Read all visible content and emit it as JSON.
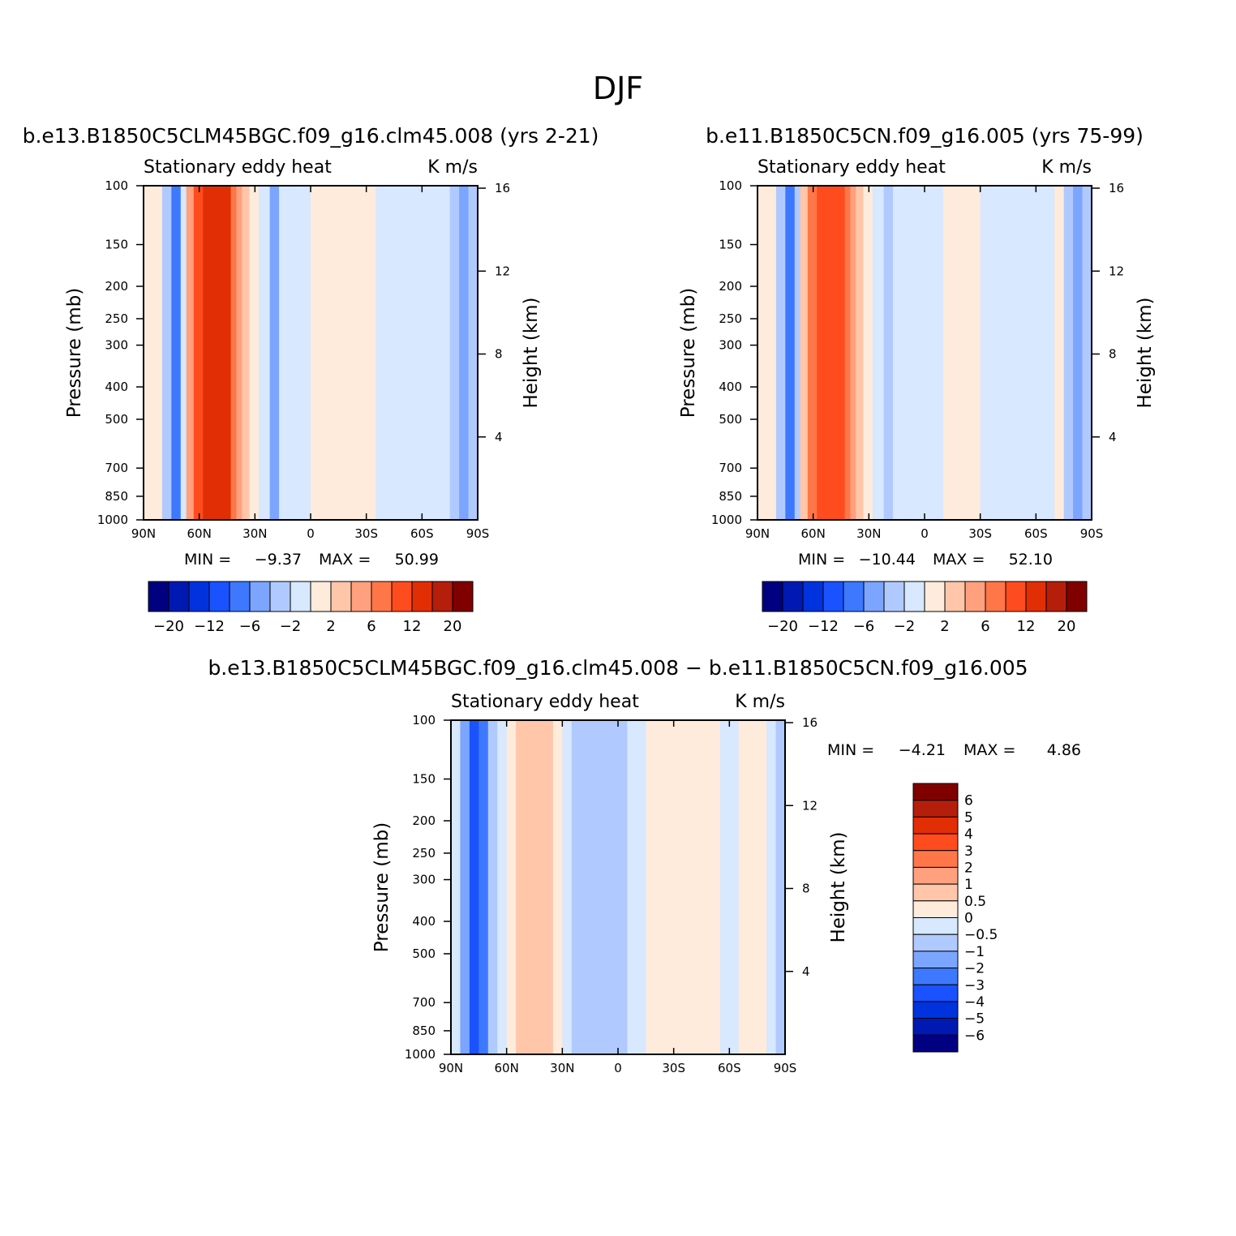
{
  "figure": {
    "title": "DJF"
  },
  "palette": {
    "left_fill": "#e8a6a8",
    "colors_main": [
      "#000080",
      "#0019b2",
      "#0033dd",
      "#1a52ff",
      "#3d78ff",
      "#7ba5ff",
      "#b0caff",
      "#d7e8ff",
      "#ffebdb",
      "#ffc6a9",
      "#ffa07e",
      "#ff7748",
      "#ff4c1f",
      "#e22e05",
      "#b51e0a",
      "#800000"
    ],
    "colors_diff": [
      "#000080",
      "#0019b2",
      "#0033dd",
      "#1a52ff",
      "#3d78ff",
      "#7ba5ff",
      "#b0caff",
      "#d7e8ff",
      "#ffebdb",
      "#ffc6a9",
      "#ffa07e",
      "#ff7748",
      "#ff4c1f",
      "#e22e05",
      "#b51e0a",
      "#800000"
    ]
  },
  "chart_data": [
    {
      "type": "heatmap",
      "id": "panel1",
      "header": "b.e13.B1850C5CLM45BGC.f09_g16.clm45.008 (yrs 2-21)",
      "subtitle": "Stationary eddy heat",
      "units": "K m/s",
      "ylabel": "Pressure (mb)",
      "y2label": "Height (km)",
      "x_ticks": [
        "90N",
        "60N",
        "30N",
        "0",
        "30S",
        "60S",
        "90S"
      ],
      "y_ticks": [
        "100",
        "150",
        "200",
        "250",
        "300",
        "400",
        "500",
        "700",
        "850",
        "1000"
      ],
      "y2_ticks": [
        "16",
        "12",
        "8",
        "4"
      ],
      "min_label": "MIN =",
      "min_value": "−9.37",
      "max_label": "MAX =",
      "max_value": "50.99",
      "colorbar_labels": [
        "−20",
        "−12",
        "−6",
        "−2",
        "2",
        "6",
        "12",
        "20"
      ],
      "levels": [
        -20,
        -16,
        -12,
        -9,
        -6,
        -4,
        -2,
        0,
        2,
        4,
        6,
        9,
        12,
        16,
        20
      ],
      "bands": [
        {
          "lat": 90,
          "level": 1
        },
        {
          "lat": 85,
          "level": 1
        },
        {
          "lat": 80,
          "level": -1
        },
        {
          "lat": 75,
          "level": -3
        },
        {
          "lat": 70,
          "level": 0
        },
        {
          "lat": 67,
          "level": 3
        },
        {
          "lat": 63,
          "level": 5
        },
        {
          "lat": 58,
          "level": 6
        },
        {
          "lat": 52,
          "level": 6
        },
        {
          "lat": 47,
          "level": 6
        },
        {
          "lat": 43,
          "level": 4
        },
        {
          "lat": 40,
          "level": 3
        },
        {
          "lat": 37,
          "level": 2
        },
        {
          "lat": 33,
          "level": 1
        },
        {
          "lat": 28,
          "level": 0
        },
        {
          "lat": 22,
          "level": -2
        },
        {
          "lat": 17,
          "level": 0
        },
        {
          "lat": 10,
          "level": 0
        },
        {
          "lat": 5,
          "level": 0
        },
        {
          "lat": 0,
          "level": 1
        },
        {
          "lat": -5,
          "level": 1
        },
        {
          "lat": -10,
          "level": 1
        },
        {
          "lat": -15,
          "level": 1
        },
        {
          "lat": -20,
          "level": 1
        },
        {
          "lat": -25,
          "level": 1
        },
        {
          "lat": -30,
          "level": 1
        },
        {
          "lat": -35,
          "level": 0
        },
        {
          "lat": -40,
          "level": 0
        },
        {
          "lat": -45,
          "level": 0
        },
        {
          "lat": -50,
          "level": 0
        },
        {
          "lat": -55,
          "level": 0
        },
        {
          "lat": -60,
          "level": 0
        },
        {
          "lat": -65,
          "level": 0
        },
        {
          "lat": -70,
          "level": 0
        },
        {
          "lat": -75,
          "level": -1
        },
        {
          "lat": -80,
          "level": -2
        },
        {
          "lat": -85,
          "level": -1
        },
        {
          "lat": -90,
          "level": 0
        }
      ]
    },
    {
      "type": "heatmap",
      "id": "panel2",
      "header": "b.e11.B1850C5CN.f09_g16.005 (yrs 75-99)",
      "subtitle": "Stationary eddy heat",
      "units": "K m/s",
      "ylabel": "Pressure (mb)",
      "y2label": "Height (km)",
      "x_ticks": [
        "90N",
        "60N",
        "30N",
        "0",
        "30S",
        "60S",
        "90S"
      ],
      "y_ticks": [
        "100",
        "150",
        "200",
        "250",
        "300",
        "400",
        "500",
        "700",
        "850",
        "1000"
      ],
      "y2_ticks": [
        "16",
        "12",
        "8",
        "4"
      ],
      "min_label": "MIN =",
      "min_value": "−10.44",
      "max_label": "MAX =",
      "max_value": "52.10",
      "colorbar_labels": [
        "−20",
        "−12",
        "−6",
        "−2",
        "2",
        "6",
        "12",
        "20"
      ],
      "levels": [
        -20,
        -16,
        -12,
        -9,
        -6,
        -4,
        -2,
        0,
        2,
        4,
        6,
        9,
        12,
        16,
        20
      ],
      "bands": [
        {
          "lat": 90,
          "level": 1
        },
        {
          "lat": 85,
          "level": 1
        },
        {
          "lat": 80,
          "level": -1
        },
        {
          "lat": 75,
          "level": -3
        },
        {
          "lat": 70,
          "level": -1
        },
        {
          "lat": 67,
          "level": 2
        },
        {
          "lat": 63,
          "level": 4
        },
        {
          "lat": 58,
          "level": 5
        },
        {
          "lat": 52,
          "level": 5
        },
        {
          "lat": 47,
          "level": 5
        },
        {
          "lat": 43,
          "level": 4
        },
        {
          "lat": 40,
          "level": 3
        },
        {
          "lat": 37,
          "level": 2
        },
        {
          "lat": 33,
          "level": 1
        },
        {
          "lat": 28,
          "level": 0
        },
        {
          "lat": 22,
          "level": -1
        },
        {
          "lat": 17,
          "level": 0
        },
        {
          "lat": 10,
          "level": 0
        },
        {
          "lat": 5,
          "level": 0
        },
        {
          "lat": 0,
          "level": 0
        },
        {
          "lat": -5,
          "level": 0
        },
        {
          "lat": -10,
          "level": 1
        },
        {
          "lat": -15,
          "level": 1
        },
        {
          "lat": -20,
          "level": 1
        },
        {
          "lat": -25,
          "level": 1
        },
        {
          "lat": -30,
          "level": 0
        },
        {
          "lat": -35,
          "level": 0
        },
        {
          "lat": -40,
          "level": 0
        },
        {
          "lat": -45,
          "level": 0
        },
        {
          "lat": -50,
          "level": 0
        },
        {
          "lat": -55,
          "level": 0
        },
        {
          "lat": -60,
          "level": 0
        },
        {
          "lat": -65,
          "level": 0
        },
        {
          "lat": -70,
          "level": 1
        },
        {
          "lat": -75,
          "level": -1
        },
        {
          "lat": -80,
          "level": -2
        },
        {
          "lat": -85,
          "level": -1
        },
        {
          "lat": -90,
          "level": 0
        }
      ]
    },
    {
      "type": "heatmap",
      "id": "panel3",
      "header": "b.e13.B1850C5CLM45BGC.f09_g16.clm45.008 − b.e11.B1850C5CN.f09_g16.005",
      "subtitle": "Stationary eddy heat",
      "units": "K m/s",
      "ylabel": "Pressure (mb)",
      "y2label": "Height (km)",
      "x_ticks": [
        "90N",
        "60N",
        "30N",
        "0",
        "30S",
        "60S",
        "90S"
      ],
      "y_ticks": [
        "100",
        "150",
        "200",
        "250",
        "300",
        "400",
        "500",
        "700",
        "850",
        "1000"
      ],
      "y2_ticks": [
        "16",
        "12",
        "8",
        "4"
      ],
      "min_label": "MIN =",
      "min_value": "−4.21",
      "max_label": "MAX =",
      "max_value": "4.86",
      "colorbar_labels": [
        "6",
        "5",
        "4",
        "3",
        "2",
        "1",
        "0.5",
        "0",
        "−0.5",
        "−1",
        "−2",
        "−3",
        "−4",
        "−5",
        "−6"
      ],
      "levels": [
        -6,
        -5,
        -4,
        -3,
        -2,
        -1,
        -0.5,
        0,
        0.5,
        1,
        2,
        3,
        4,
        5,
        6
      ],
      "bands": [
        {
          "lat": 90,
          "level": 0
        },
        {
          "lat": 85,
          "level": -2
        },
        {
          "lat": 80,
          "level": -4
        },
        {
          "lat": 75,
          "level": -3
        },
        {
          "lat": 70,
          "level": -1
        },
        {
          "lat": 65,
          "level": 0
        },
        {
          "lat": 60,
          "level": 1
        },
        {
          "lat": 55,
          "level": 2
        },
        {
          "lat": 50,
          "level": 2
        },
        {
          "lat": 45,
          "level": 2
        },
        {
          "lat": 40,
          "level": 2
        },
        {
          "lat": 35,
          "level": 1
        },
        {
          "lat": 30,
          "level": 0
        },
        {
          "lat": 25,
          "level": -1
        },
        {
          "lat": 20,
          "level": -1
        },
        {
          "lat": 15,
          "level": -1
        },
        {
          "lat": 10,
          "level": -1
        },
        {
          "lat": 5,
          "level": -1
        },
        {
          "lat": 0,
          "level": -1
        },
        {
          "lat": -5,
          "level": 0
        },
        {
          "lat": -10,
          "level": 0
        },
        {
          "lat": -15,
          "level": 1
        },
        {
          "lat": -20,
          "level": 1
        },
        {
          "lat": -25,
          "level": 1
        },
        {
          "lat": -30,
          "level": 1
        },
        {
          "lat": -35,
          "level": 1
        },
        {
          "lat": -40,
          "level": 1
        },
        {
          "lat": -45,
          "level": 1
        },
        {
          "lat": -50,
          "level": 1
        },
        {
          "lat": -55,
          "level": 0
        },
        {
          "lat": -60,
          "level": 0
        },
        {
          "lat": -65,
          "level": 1
        },
        {
          "lat": -70,
          "level": 1
        },
        {
          "lat": -75,
          "level": 1
        },
        {
          "lat": -80,
          "level": 0
        },
        {
          "lat": -85,
          "level": -1
        },
        {
          "lat": -90,
          "level": 0
        }
      ]
    }
  ]
}
